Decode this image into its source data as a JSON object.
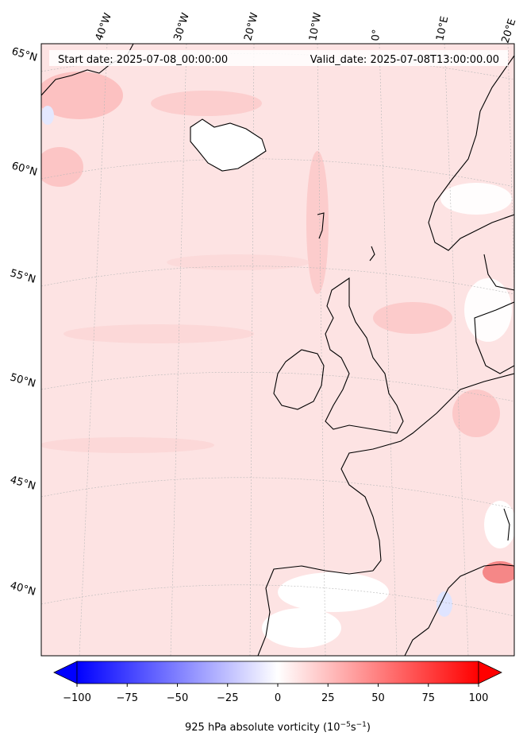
{
  "header": {
    "start_date": "Start date: 2025-07-08_00:00:00",
    "valid_date": "Valid_date: 2025-07-08T13:00:00.00"
  },
  "longitude_labels": [
    "40°W",
    "30°W",
    "20°W",
    "10°W",
    "0°",
    "10°E",
    "20°E"
  ],
  "latitude_labels": [
    "65°N",
    "60°N",
    "55°N",
    "50°N",
    "45°N",
    "40°N"
  ],
  "colorbar": {
    "ticks": [
      "−100",
      "−75",
      "−50",
      "−25",
      "0",
      "25",
      "50",
      "75",
      "100"
    ],
    "min": -100,
    "max": 100,
    "label": "925 hPa absolute vorticity (10",
    "label_exp1": "−5",
    "label_mid": "s",
    "label_exp2": "−1",
    "label_end": ")",
    "colormap": "bwr",
    "extend": "both"
  },
  "colors": {
    "background_field": "#fde0e0",
    "positive_max": "#ff0000",
    "negative_max": "#0000ff",
    "zero": "#ffffff",
    "coastline": "#000000",
    "gridline": "#b0b0b0"
  }
}
